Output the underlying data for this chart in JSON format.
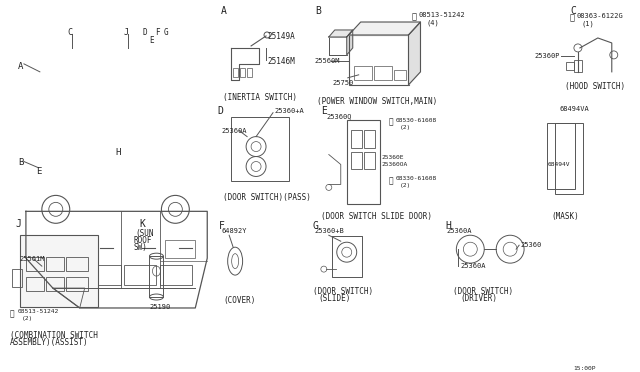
{
  "bg_color": "#ffffff",
  "line_color": "#555555",
  "text_color": "#222222",
  "circled_s": "Ⓢ",
  "parts": {
    "A_inertia": [
      "25149A",
      "25146M"
    ],
    "A_caption": "(INERTIA SWITCH)",
    "B_parts": [
      "25560M",
      "25750"
    ],
    "B_bolt": "08513-51242",
    "B_bolt_qty": "(4)",
    "B_caption": "(POWER WINDOW SWITCH,MAIN)",
    "C_bolt": "08363-6122G",
    "C_bolt_qty": "(1)",
    "C_part": "25360P",
    "C_caption": "(HOOD SWITCH)",
    "D_parts": [
      "25360+A",
      "25360A"
    ],
    "D_caption": "(DOOR SWITCH)(PASS)",
    "E_parts": [
      "25360Q",
      "08530-61608",
      "(2)",
      "25360E",
      "25360OA",
      "08330-61608",
      "(2)"
    ],
    "E_caption": "(DOOR SWITCH SLIDE DOOR)",
    "mask_part1": "68494VA",
    "mask_part2": "68494V",
    "mask_caption": "(MASK)",
    "F_part": "64892Y",
    "F_caption": "(COVER)",
    "G_part": "25360+B",
    "G_caption1": "(DOOR SWITCH)",
    "G_caption2": "(SLIDE)",
    "H_parts": [
      "25360A",
      "25360"
    ],
    "H_caption1": "(DOOR SWITCH)",
    "H_caption2": "(DRIVER)",
    "J_parts": [
      "25561M",
      "08513-51242",
      "(2)"
    ],
    "J_caption1": "(COMBINATION SWITCH",
    "J_caption2": "ASSEMBLY)(ASSIST)",
    "K_part": "25190",
    "K_caption1": "(SUN",
    "K_caption2": "ROOF",
    "K_caption3": "SW)",
    "footer": "15:00P"
  }
}
